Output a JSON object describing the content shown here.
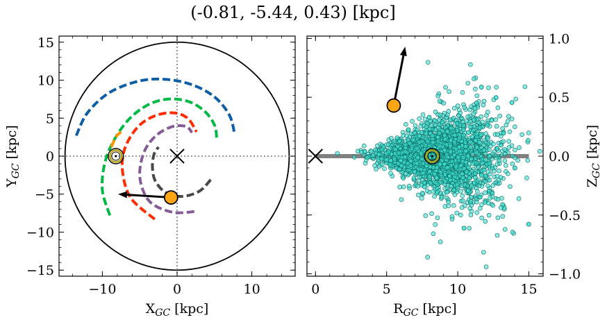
{
  "chart_data": [
    {
      "id": "left",
      "type": "line",
      "xlabel": "X",
      "xlabel_sub": "GC",
      "xlabel_unit": " [kpc]",
      "ylabel": "Y",
      "ylabel_sub": "GC",
      "ylabel_unit": " [kpc]",
      "xlim": [
        -15.8,
        15.8
      ],
      "ylim": [
        -15.8,
        15.8
      ],
      "xticks": [
        -10,
        0,
        10
      ],
      "xtick_labels": [
        "−10",
        "0",
        "10"
      ],
      "yticks": [
        -15,
        -10,
        -5,
        0,
        5,
        10,
        15
      ],
      "ytick_labels": [
        "−15",
        "−10",
        "−5",
        "0",
        "5",
        "10",
        "15"
      ],
      "grid": false,
      "boundary_circle": {
        "cx": 0,
        "cy": 0,
        "r": 15
      },
      "crosshair": {
        "x": 0,
        "y": 0
      },
      "galactic_center": {
        "x": 0,
        "y": 0
      },
      "sun": {
        "x": -8.2,
        "y": 0
      },
      "object": {
        "x": -0.81,
        "y": -5.44
      },
      "velocity_arrow": {
        "from": [
          -0.81,
          -5.44
        ],
        "to": [
          -7.9,
          -5.0
        ]
      },
      "spiral_arms": [
        {
          "color": "#0c5da5",
          "width": 4,
          "points": [
            [
              -13.5,
              2.7
            ],
            [
              -12.0,
              5.7
            ],
            [
              -9.0,
              8.4
            ],
            [
              -5.0,
              9.9
            ],
            [
              -1.5,
              10.1
            ],
            [
              2.0,
              9.4
            ],
            [
              5.0,
              7.8
            ],
            [
              7.0,
              5.4
            ],
            [
              7.7,
              2.9
            ]
          ]
        },
        {
          "color": "#00b945",
          "width": 4,
          "points": [
            [
              -9.0,
              -7.8
            ],
            [
              -10.0,
              -4.5
            ],
            [
              -9.7,
              -1.0
            ],
            [
              -8.5,
              2.0
            ],
            [
              -6.5,
              4.8
            ],
            [
              -4.0,
              6.7
            ],
            [
              -1.3,
              7.5
            ],
            [
              1.5,
              7.2
            ],
            [
              3.7,
              5.9
            ],
            [
              5.0,
              4.1
            ],
            [
              5.3,
              2.4
            ]
          ]
        },
        {
          "color": "#ff9500",
          "width": 4,
          "points": [
            [
              -8.8,
              1.2
            ],
            [
              -8.2,
              2.5
            ],
            [
              -7.5,
              3.2
            ]
          ]
        },
        {
          "color": "#ff2c00",
          "width": 4,
          "points": [
            [
              -3.0,
              -8.3
            ],
            [
              -6.2,
              -5.5
            ],
            [
              -7.3,
              -2.0
            ],
            [
              -7.0,
              1.0
            ],
            [
              -5.3,
              3.8
            ],
            [
              -3.0,
              5.3
            ],
            [
              -0.5,
              5.7
            ],
            [
              1.4,
              5.0
            ],
            [
              2.6,
              3.2
            ]
          ]
        },
        {
          "color": "#845b97",
          "width": 4,
          "points": [
            [
              2.3,
              -7.3
            ],
            [
              -0.5,
              -7.4
            ],
            [
              -3.3,
              -6.3
            ],
            [
              -4.6,
              -4.4
            ],
            [
              -5.0,
              -2.0
            ],
            [
              -4.3,
              0.8
            ],
            [
              -2.7,
              2.8
            ],
            [
              -0.6,
              3.9
            ],
            [
              1.2,
              3.9
            ],
            [
              2.0,
              3.1
            ]
          ]
        },
        {
          "color": "#474747",
          "width": 4,
          "points": [
            [
              4.5,
              -3.1
            ],
            [
              3.0,
              -4.6
            ],
            [
              0.7,
              -5.3
            ],
            [
              -1.5,
              -4.8
            ],
            [
              -2.9,
              -3.3
            ],
            [
              -3.3,
              -1.5
            ],
            [
              -3.1,
              0.2
            ],
            [
              -2.5,
              1.2
            ]
          ]
        }
      ],
      "colors": {
        "sun_ring": "#b5a200",
        "object_fill": "#ffa614",
        "object_edge": "#000000"
      }
    },
    {
      "id": "right",
      "type": "scatter",
      "xlabel": "R",
      "xlabel_sub": "GC",
      "xlabel_unit": " [kpc]",
      "ylabel": "Z",
      "ylabel_sub": "GC",
      "ylabel_unit": " [kpc]",
      "xlim": [
        -0.6,
        16.0
      ],
      "ylim": [
        -1.02,
        1.02
      ],
      "xticks": [
        0,
        5,
        10,
        15
      ],
      "xtick_labels": [
        "0",
        "5",
        "10",
        "15"
      ],
      "yticks": [
        -1.0,
        -0.5,
        0.0,
        0.5,
        1.0
      ],
      "ytick_labels": [
        "−1.0",
        "−0.5",
        "0.0",
        "0.5",
        "1.0"
      ],
      "grid": false,
      "disk_line": {
        "x0": 0,
        "x1": 15,
        "y": 0,
        "color": "#808080"
      },
      "galactic_center": {
        "x": 0,
        "y": 0
      },
      "sun": {
        "x": 8.2,
        "y": 0
      },
      "object": {
        "x": 5.5,
        "y": 0.43
      },
      "velocity_arrow": {
        "from": [
          5.5,
          0.43
        ],
        "to": [
          6.3,
          0.93
        ]
      },
      "scatter": {
        "count": 2600,
        "center_x": 8.5,
        "color": "#40e0d0",
        "edge": "#0a6b63",
        "seed": 42
      },
      "colors": {
        "sun_ring": "#b5a200",
        "object_fill": "#ffa614",
        "object_edge": "#000000"
      }
    }
  ],
  "title": "(-0.81, -5.44, 0.43) [kpc]"
}
